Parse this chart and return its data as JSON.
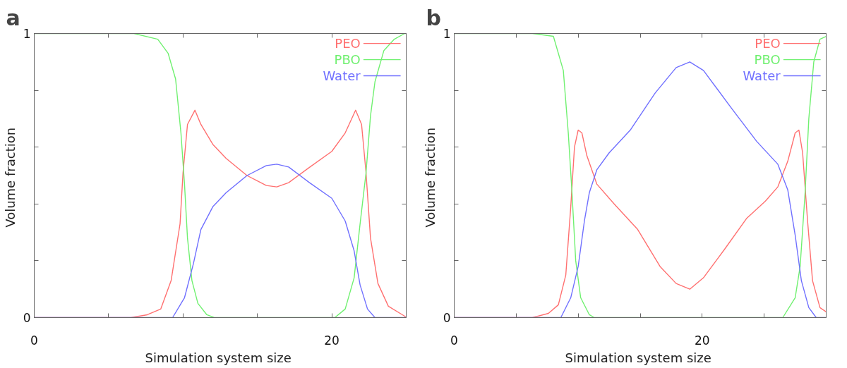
{
  "chart_data": [
    {
      "type": "line",
      "title": "a",
      "xlabel": "Simulation  system size",
      "ylabel": "Volume  fraction",
      "xlim": [
        0,
        25
      ],
      "ylim": [
        0,
        1
      ],
      "xticks": [
        0,
        {
          "value": 5,
          "label": null
        },
        {
          "value": 10,
          "label": null
        },
        {
          "value": 15,
          "label": null
        },
        20,
        {
          "value": 25,
          "label": null
        }
      ],
      "yticks": [
        0,
        {
          "value": 0.2,
          "label": null
        },
        {
          "value": 0.4,
          "label": null
        },
        {
          "value": 0.6,
          "label": null
        },
        {
          "value": 0.8,
          "label": null
        },
        1
      ],
      "grid": false,
      "legend": "top right",
      "series": [
        {
          "name": "PEO",
          "color": "#ff7070",
          "x": [
            0,
            6.5,
            7.6,
            8.5,
            9.2,
            9.8,
            10.0,
            10.3,
            10.8,
            11.2,
            12.0,
            12.9,
            14.3,
            15.6,
            16.3,
            17.1,
            18.4,
            20.0,
            20.9,
            21.6,
            22.0,
            22.3,
            22.6,
            23.1,
            23.8,
            24.9,
            25
          ],
          "values": [
            0,
            0,
            0.01,
            0.03,
            0.13,
            0.33,
            0.51,
            0.68,
            0.73,
            0.68,
            0.61,
            0.56,
            0.5,
            0.465,
            0.46,
            0.475,
            0.525,
            0.585,
            0.65,
            0.73,
            0.68,
            0.51,
            0.28,
            0.12,
            0.04,
            0.005,
            0
          ]
        },
        {
          "name": "PBO",
          "color": "#70f070",
          "x": [
            0,
            6.7,
            8.3,
            9.0,
            9.5,
            9.86,
            10.1,
            10.3,
            10.6,
            11.0,
            11.6,
            12.1,
            20.2,
            20.9,
            21.5,
            21.9,
            22.3,
            22.6,
            22.9,
            23.5,
            24.2,
            24.9,
            25
          ],
          "values": [
            1,
            1,
            0.98,
            0.93,
            0.84,
            0.65,
            0.47,
            0.28,
            0.13,
            0.05,
            0.01,
            0,
            0,
            0.03,
            0.14,
            0.33,
            0.51,
            0.71,
            0.83,
            0.94,
            0.98,
            1,
            1
          ]
        },
        {
          "name": "Water",
          "color": "#7070ff",
          "x": [
            0,
            9.3,
            10.1,
            10.7,
            11.2,
            12.0,
            12.9,
            14.3,
            15.6,
            16.3,
            17.1,
            18.5,
            20.0,
            20.9,
            21.5,
            21.9,
            22.4,
            22.9,
            25
          ],
          "values": [
            0,
            0,
            0.07,
            0.19,
            0.31,
            0.39,
            0.44,
            0.5,
            0.535,
            0.54,
            0.53,
            0.475,
            0.42,
            0.34,
            0.235,
            0.115,
            0.03,
            0,
            0
          ]
        }
      ]
    },
    {
      "type": "line",
      "title": "b",
      "xlabel": "Simulation  system size",
      "ylabel": "Volume  fraction",
      "xlim": [
        0,
        30
      ],
      "ylim": [
        0,
        1
      ],
      "xticks": [
        0,
        {
          "value": 5,
          "label": null
        },
        {
          "value": 10,
          "label": null
        },
        {
          "value": 15,
          "label": null
        },
        20,
        {
          "value": 25,
          "label": null
        },
        {
          "value": 30,
          "label": null
        }
      ],
      "yticks": [
        0,
        {
          "value": 0.2,
          "label": null
        },
        {
          "value": 0.4,
          "label": null
        },
        {
          "value": 0.6,
          "label": null
        },
        {
          "value": 0.8,
          "label": null
        },
        1
      ],
      "grid": false,
      "legend": "top right",
      "series": [
        {
          "name": "PEO",
          "color": "#ff7070",
          "x": [
            0,
            6.3,
            7.6,
            8.4,
            9.0,
            9.4,
            9.7,
            10.0,
            10.3,
            10.7,
            11.5,
            12.9,
            14.8,
            16.6,
            17.9,
            19.0,
            20.1,
            21.8,
            23.6,
            25.1,
            26.1,
            26.9,
            27.5,
            27.8,
            28.1,
            28.5,
            28.9,
            29.5,
            30.0
          ],
          "values": [
            0,
            0,
            0.015,
            0.045,
            0.15,
            0.39,
            0.6,
            0.66,
            0.65,
            0.57,
            0.47,
            0.4,
            0.31,
            0.18,
            0.12,
            0.1,
            0.14,
            0.24,
            0.35,
            0.41,
            0.46,
            0.55,
            0.65,
            0.66,
            0.58,
            0.34,
            0.13,
            0.035,
            0.02
          ]
        },
        {
          "name": "PBO",
          "color": "#70f070",
          "x": [
            0,
            6.3,
            8.0,
            8.8,
            9.2,
            9.5,
            9.8,
            10.2,
            10.9,
            11.3,
            26.5,
            27.5,
            27.9,
            28.3,
            28.6,
            29.0,
            29.5,
            30.0
          ],
          "values": [
            1,
            1,
            0.99,
            0.87,
            0.65,
            0.44,
            0.2,
            0.07,
            0.01,
            0,
            0,
            0.07,
            0.18,
            0.44,
            0.7,
            0.9,
            0.98,
            0.99
          ]
        },
        {
          "name": "Water",
          "color": "#7070ff",
          "x": [
            0,
            8.6,
            9.4,
            10.0,
            10.5,
            10.9,
            11.5,
            12.5,
            14.2,
            16.2,
            17.9,
            19.0,
            20.1,
            22.4,
            24.4,
            26.1,
            26.9,
            27.5,
            28.0,
            28.6,
            29.2,
            30.0
          ],
          "values": [
            0,
            0,
            0.07,
            0.18,
            0.34,
            0.44,
            0.52,
            0.58,
            0.66,
            0.79,
            0.88,
            0.9,
            0.87,
            0.735,
            0.62,
            0.54,
            0.45,
            0.29,
            0.13,
            0.035,
            0,
            0
          ]
        }
      ]
    }
  ]
}
